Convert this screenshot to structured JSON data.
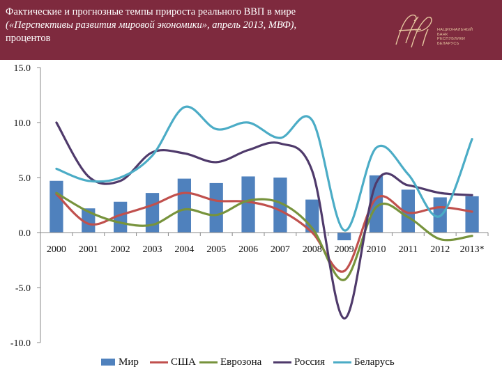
{
  "header": {
    "title_line1": "Фактические и прогнозные темпы прироста реального ВВП в мире",
    "title_line2": "(«Перспективы развития мировой экономики», апрель 2013, МВФ),",
    "title_line3": "процентов",
    "logo_monogram": "НБ",
    "logo_text": [
      "НАЦИОНАЛЬНЫЙ",
      "БАНК",
      "РЕСПУБЛИКИ",
      "БЕЛАРУСЬ"
    ]
  },
  "colors": {
    "header_bg": "#7e2a3e",
    "mir": "#4f81bd",
    "usa": "#c0504d",
    "eurozone": "#77933c",
    "russia": "#4f3a6b",
    "belarus": "#4bacc6"
  },
  "chart_data": {
    "type": "bar+line",
    "title": "Фактические и прогнозные темпы прироста реального ВВП в мире",
    "categories": [
      "2000",
      "2001",
      "2002",
      "2003",
      "2004",
      "2005",
      "2006",
      "2007",
      "2008",
      "2009",
      "2010",
      "2011",
      "2012",
      "2013*"
    ],
    "ylim": [
      -10,
      15
    ],
    "yticks": [
      -10,
      -5,
      0,
      5,
      10,
      15
    ],
    "ytick_labels": [
      "-10.0",
      "-5.0",
      "0.0",
      "5.0",
      "10.0",
      "15.0"
    ],
    "series": [
      {
        "name": "Мир",
        "kind": "bar",
        "color": "#4f81bd",
        "values": [
          4.7,
          2.2,
          2.8,
          3.6,
          4.9,
          4.5,
          5.1,
          5.0,
          3.0,
          -0.7,
          5.2,
          3.9,
          3.2,
          3.3
        ]
      },
      {
        "name": "США",
        "kind": "line",
        "color": "#c0504d",
        "values": [
          3.5,
          0.8,
          1.6,
          2.5,
          3.6,
          2.9,
          2.8,
          2.0,
          0.0,
          -3.5,
          3.1,
          1.8,
          2.3,
          1.9
        ]
      },
      {
        "name": "Еврозона",
        "kind": "line",
        "color": "#77933c",
        "values": [
          3.6,
          1.9,
          0.9,
          0.7,
          2.1,
          1.6,
          2.9,
          2.7,
          0.4,
          -4.3,
          2.3,
          1.4,
          -0.6,
          -0.3
        ]
      },
      {
        "name": "Россия",
        "kind": "line",
        "color": "#4f3a6b",
        "values": [
          10.0,
          5.1,
          4.7,
          7.3,
          7.2,
          6.4,
          7.5,
          8.1,
          5.6,
          -7.8,
          4.5,
          4.3,
          3.6,
          3.4
        ]
      },
      {
        "name": "Беларусь",
        "kind": "line",
        "color": "#4bacc6",
        "values": [
          5.8,
          4.7,
          5.0,
          7.0,
          11.4,
          9.4,
          10.0,
          8.6,
          10.2,
          0.2,
          7.7,
          5.3,
          1.5,
          8.5
        ]
      }
    ],
    "legend_position": "bottom"
  }
}
